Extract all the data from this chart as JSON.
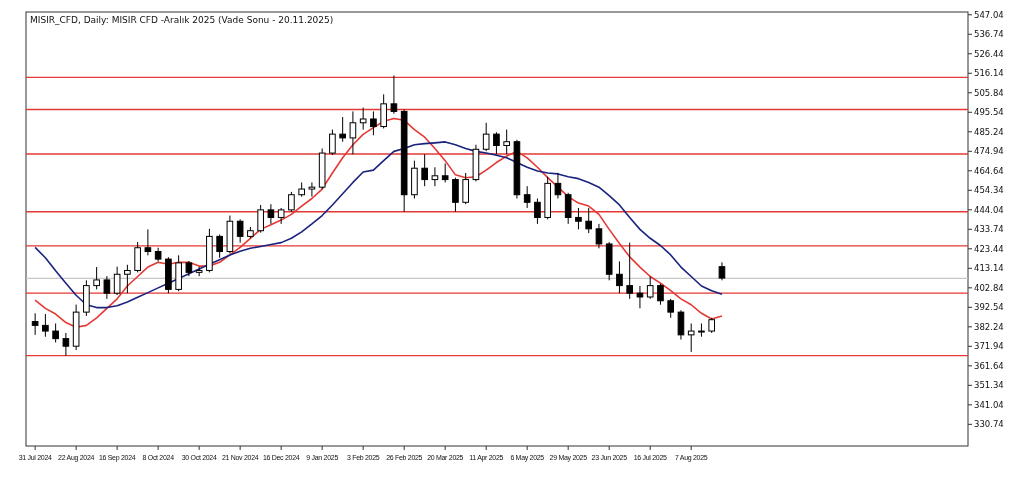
{
  "chart_data": {
    "type": "candlestick",
    "title": "MISIR_CFD, Daily:  MISIR CFD -Aralık 2025 (Vade Sonu - 20.11.2025)",
    "categories": [
      "31 Jul 2024",
      null,
      null,
      null,
      "22 Aug 2024",
      null,
      null,
      null,
      "16 Sep 2024",
      null,
      null,
      null,
      "8 Oct 2024",
      null,
      null,
      null,
      "30 Oct 2024",
      null,
      null,
      null,
      "21 Nov 2024",
      null,
      null,
      null,
      "16 Dec 2024",
      null,
      null,
      null,
      "9 Jan 2025",
      null,
      null,
      null,
      "3 Feb 2025",
      null,
      null,
      null,
      "26 Feb 2025",
      null,
      null,
      null,
      "20 Mar 2025",
      null,
      null,
      null,
      "11 Apr 2025",
      null,
      null,
      null,
      "6 May 2025",
      null,
      null,
      null,
      "29 May 2025",
      null,
      null,
      null,
      "23 Jun 2025",
      null,
      null,
      null,
      "16 Jul 2025",
      null,
      null,
      null,
      "7 Aug 2025",
      null,
      null,
      null
    ],
    "ohlc": [
      [
        385,
        389.4,
        378,
        383
      ],
      [
        383,
        389,
        377,
        380
      ],
      [
        380,
        384,
        374,
        376
      ],
      [
        376,
        379,
        367,
        372
      ],
      [
        372,
        394,
        370,
        390
      ],
      [
        390,
        406.8,
        388,
        404
      ],
      [
        404,
        413.8,
        402,
        407
      ],
      [
        407,
        409,
        397,
        400
      ],
      [
        400,
        414,
        399,
        410
      ],
      [
        410,
        415,
        400,
        412
      ],
      [
        412,
        427,
        411,
        424
      ],
      [
        424,
        433.7,
        420,
        422
      ],
      [
        422,
        424,
        416.8,
        418
      ],
      [
        418,
        419,
        400,
        402
      ],
      [
        402,
        420,
        401,
        416
      ],
      [
        416,
        417,
        409,
        411
      ],
      [
        411,
        414,
        409,
        412
      ],
      [
        412,
        434,
        411,
        430
      ],
      [
        430,
        431,
        418.7,
        422
      ],
      [
        422,
        441,
        421,
        438
      ],
      [
        438,
        439,
        426.7,
        430
      ],
      [
        430,
        435,
        429,
        433
      ],
      [
        433,
        446.6,
        432,
        444
      ],
      [
        444,
        447,
        436.6,
        440
      ],
      [
        440,
        445,
        436.6,
        444
      ],
      [
        444,
        453.5,
        443,
        452
      ],
      [
        452,
        458.5,
        451,
        455
      ],
      [
        455,
        458.5,
        451,
        456
      ],
      [
        456,
        476.4,
        455,
        474
      ],
      [
        474,
        486.4,
        473,
        484
      ],
      [
        484,
        493,
        480,
        482
      ],
      [
        482,
        496,
        473.4,
        490
      ],
      [
        490,
        498,
        486.4,
        492
      ],
      [
        492,
        496,
        483.4,
        488
      ],
      [
        488,
        505,
        487,
        500
      ],
      [
        500,
        515,
        494.8,
        496
      ],
      [
        496,
        497,
        443,
        452
      ],
      [
        452,
        470,
        450,
        466
      ],
      [
        466,
        473.4,
        456.5,
        460
      ],
      [
        460,
        466.5,
        456.5,
        462
      ],
      [
        462,
        468.5,
        458.5,
        460
      ],
      [
        460,
        461,
        443,
        448
      ],
      [
        448,
        463.5,
        447,
        460
      ],
      [
        460,
        478.4,
        459,
        476
      ],
      [
        476,
        490,
        475,
        484
      ],
      [
        484,
        485,
        473.4,
        478
      ],
      [
        478,
        486.4,
        473.4,
        480
      ],
      [
        480,
        481,
        450,
        452
      ],
      [
        452,
        456.5,
        445,
        448
      ],
      [
        448,
        450,
        436.6,
        440
      ],
      [
        440,
        461.5,
        439,
        458
      ],
      [
        458,
        463.5,
        450,
        452
      ],
      [
        452,
        453,
        436.6,
        440
      ],
      [
        440,
        445,
        433.7,
        438
      ],
      [
        438,
        445,
        431.7,
        434
      ],
      [
        434,
        436.6,
        423.7,
        426
      ],
      [
        426,
        427,
        406.8,
        410
      ],
      [
        410,
        416.8,
        400,
        404
      ],
      [
        404,
        426.7,
        397,
        400
      ],
      [
        400,
        403.8,
        392,
        398
      ],
      [
        398,
        408.8,
        397,
        404
      ],
      [
        404,
        405,
        393.9,
        396
      ],
      [
        396,
        397,
        387,
        390
      ],
      [
        390,
        391,
        375.5,
        378
      ],
      [
        378,
        384,
        369,
        380
      ],
      [
        380,
        384,
        377,
        380
      ],
      [
        380,
        387,
        379,
        386
      ],
      [
        414,
        416.3,
        406.8,
        408
      ]
    ],
    "color": "#000000",
    "series": [
      {
        "type": "line",
        "color": "#e53935",
        "values": [
          396.4,
          392,
          389,
          384.5,
          382,
          383,
          387,
          392,
          397,
          403.8,
          408.8,
          413.8,
          416.3,
          415.3,
          416.3,
          416.3,
          414.3,
          414.3,
          416.3,
          420.2,
          424.2,
          429,
          433.7,
          436.1,
          438.6,
          441.6,
          446,
          450,
          455,
          463.5,
          471.5,
          478.4,
          483.9,
          487.4,
          490.8,
          492.3,
          491.3,
          486.4,
          482.4,
          476.4,
          470,
          462.5,
          461,
          461.5,
          465,
          469,
          472.4,
          474.9,
          471.5,
          466.5,
          461,
          456,
          451,
          447.6,
          446,
          441.6,
          433.7,
          426.2,
          419.2,
          413.8,
          408.8,
          405.3,
          401.3,
          397,
          393.9,
          389.4,
          386.4,
          387.9
        ]
      },
      {
        "type": "line",
        "color": "#1a237e",
        "values": [
          424.2,
          418.7,
          411.8,
          405.3,
          398.9,
          393.9,
          392.4,
          392.4,
          393.4,
          395.4,
          397.9,
          400.3,
          402.8,
          405.3,
          407.8,
          410.3,
          412.8,
          415.3,
          417.7,
          420.2,
          422.2,
          423.7,
          424.7,
          425.7,
          426.7,
          429,
          432.4,
          436.6,
          441,
          446.6,
          452.5,
          458.5,
          464,
          465,
          470,
          474.9,
          476.4,
          478.4,
          479,
          479.4,
          479.9,
          478.4,
          476.4,
          474.9,
          474,
          472.9,
          471.5,
          469,
          466.5,
          464.5,
          463.5,
          463,
          461.5,
          460.5,
          458.5,
          456,
          451.5,
          446.6,
          440,
          433.7,
          429,
          425.2,
          420.2,
          413.8,
          408.8,
          403.8,
          401.3,
          399.4
        ]
      }
    ],
    "ref_lines": [
      {
        "axis": "y",
        "value": 514,
        "color": "#e53935"
      },
      {
        "axis": "y",
        "value": 497,
        "color": "#e53935"
      },
      {
        "axis": "y",
        "value": 473.5,
        "color": "#e53935"
      },
      {
        "axis": "y",
        "value": 443,
        "color": "#e53935"
      },
      {
        "axis": "y",
        "value": 425,
        "color": "#e53935"
      },
      {
        "axis": "y",
        "value": 400,
        "color": "#e53935"
      },
      {
        "axis": "y",
        "value": 367,
        "color": "#e53935"
      },
      {
        "axis": "y",
        "value": 407.8,
        "color": "#c8c8c8"
      }
    ],
    "ylim": [
      319.3,
      548.5
    ],
    "yticks": [
      {
        "value": 330.74,
        "label": "330.74"
      },
      {
        "value": 341.04,
        "label": "341.04"
      },
      {
        "value": 351.34,
        "label": "351.34"
      },
      {
        "value": 361.64,
        "label": "361.64"
      },
      {
        "value": 371.94,
        "label": "371.94"
      },
      {
        "value": 382.24,
        "label": "382.24"
      },
      {
        "value": 392.54,
        "label": "392.54"
      },
      {
        "value": 402.84,
        "label": "402.84"
      },
      {
        "value": 413.14,
        "label": "413.14"
      },
      {
        "value": 423.44,
        "label": "423.44"
      },
      {
        "value": 433.74,
        "label": "433.74"
      },
      {
        "value": 444.04,
        "label": "444.04"
      },
      {
        "value": 454.34,
        "label": "454.34"
      },
      {
        "value": 464.64,
        "label": "464.64"
      },
      {
        "value": 474.94,
        "label": "474.94"
      },
      {
        "value": 485.24,
        "label": "485.24"
      },
      {
        "value": 495.54,
        "label": "495.54"
      },
      {
        "value": 505.84,
        "label": "505.84"
      },
      {
        "value": 516.14,
        "label": "516.14"
      },
      {
        "value": 526.44,
        "label": "526.44"
      },
      {
        "value": 536.74,
        "label": "536.74"
      },
      {
        "value": 547.04,
        "label": "547.04"
      }
    ],
    "grid": false
  }
}
